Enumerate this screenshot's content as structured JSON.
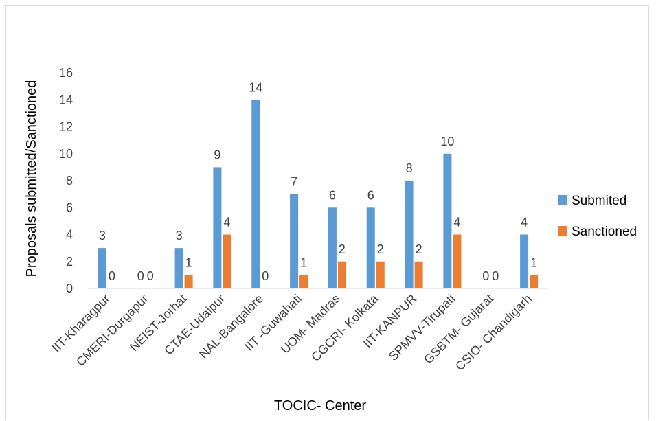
{
  "chart_data": {
    "type": "bar",
    "title": "",
    "xlabel": "TOCIC- Center",
    "ylabel": "Proposals submitted/Sanctioned",
    "ylim": [
      0,
      16
    ],
    "yticks": [
      0,
      2,
      4,
      6,
      8,
      10,
      12,
      14,
      16
    ],
    "grid": false,
    "legend_position": "right",
    "categories": [
      "IIT-Kharagpur",
      "CMERI-Durgapur",
      "NEIST-Jorhat",
      "CTAE-Udaipur",
      "NAL-Bangalore",
      "IIT -Guwahati",
      "UOM- Madras",
      "CGCRI- Kolkata",
      "IIT-KANPUR",
      "SPMVV-Tirupati",
      "GSBTM- Gujarat",
      "CSIO- Chandigarh"
    ],
    "series": [
      {
        "name": "Submited",
        "color": "#5b9bd5",
        "values": [
          3,
          0,
          3,
          9,
          14,
          7,
          6,
          6,
          8,
          10,
          0,
          4
        ]
      },
      {
        "name": "Sanctioned",
        "color": "#ed7d31",
        "values": [
          0,
          0,
          1,
          4,
          0,
          1,
          2,
          2,
          2,
          4,
          0,
          1
        ]
      }
    ]
  }
}
